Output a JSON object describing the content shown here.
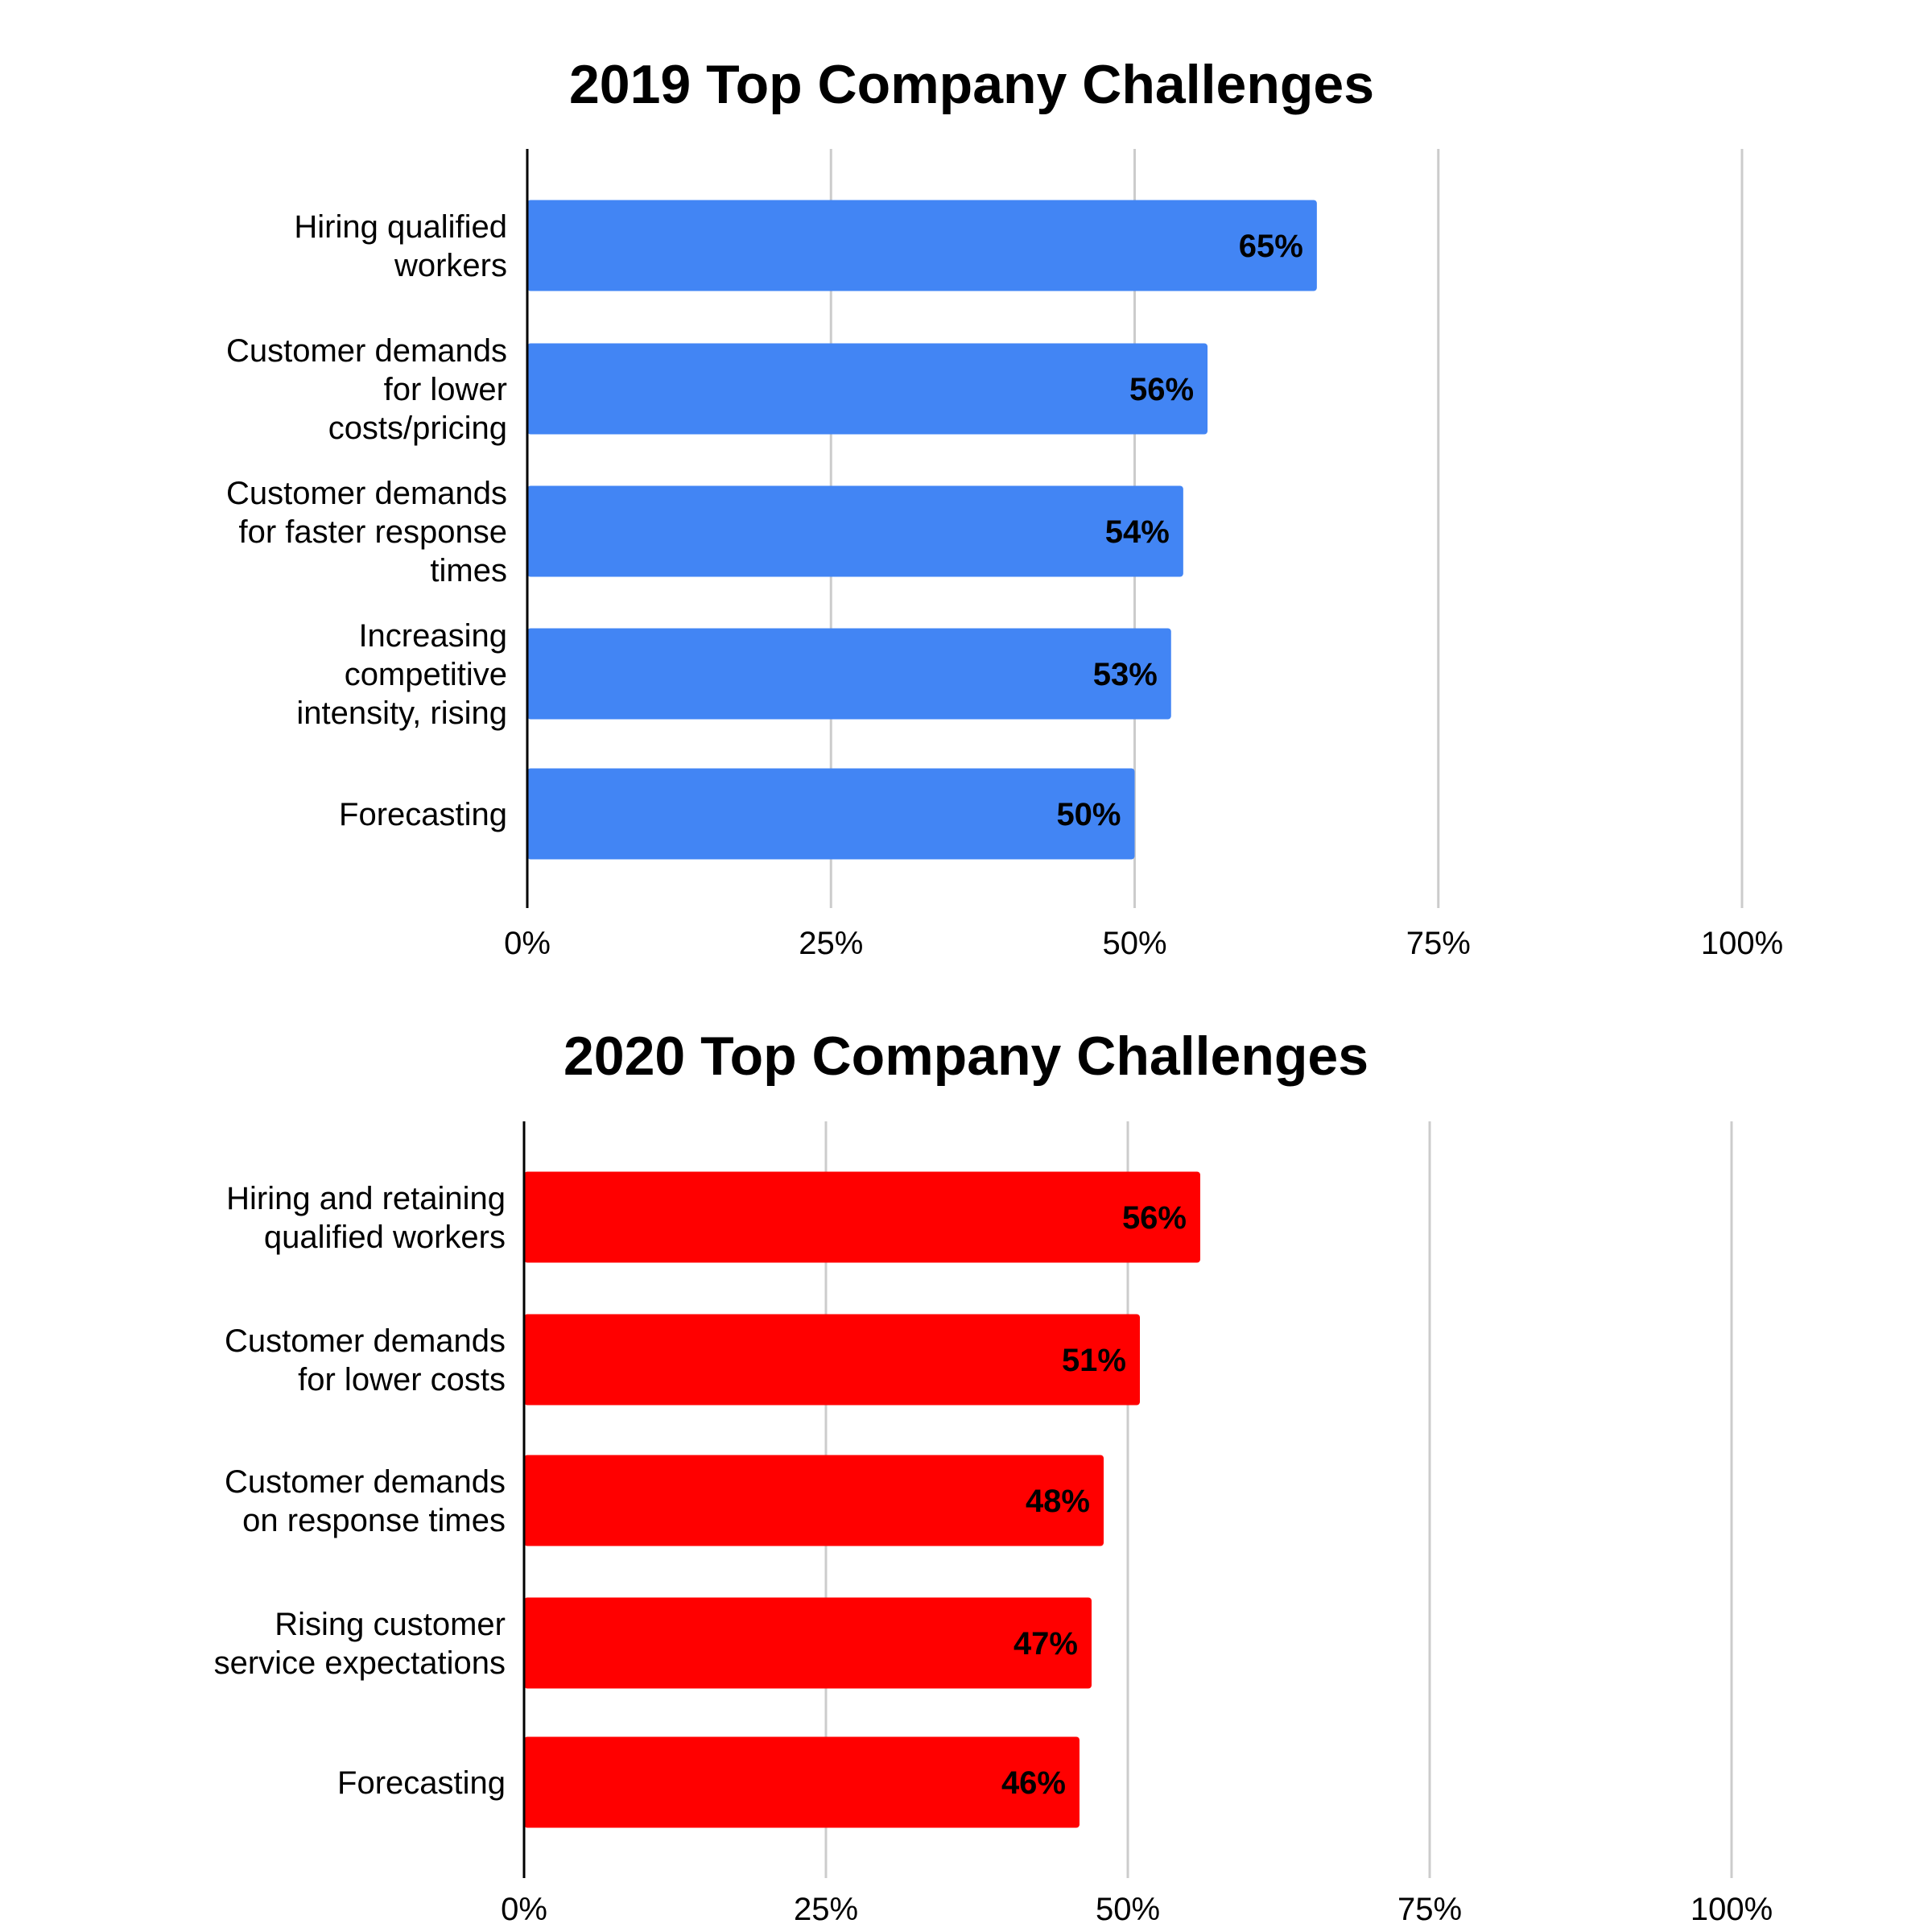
{
  "chart_data": [
    {
      "type": "bar",
      "orientation": "horizontal",
      "title": "2019 Top Company Challenges",
      "categories": [
        [
          "Hiring qualified",
          "workers"
        ],
        [
          "Customer demands",
          "for lower",
          "costs/pricing"
        ],
        [
          "Customer demands",
          "for faster response",
          "times"
        ],
        [
          "Increasing",
          "competitive",
          "intensity, rising"
        ],
        [
          "Forecasting"
        ]
      ],
      "values": [
        65,
        56,
        54,
        53,
        50
      ],
      "data_labels": [
        "65%",
        "56%",
        "54%",
        "53%",
        "50%"
      ],
      "xlim": [
        0,
        100
      ],
      "ticks": [
        0,
        25,
        50,
        75,
        100
      ],
      "tick_labels": [
        "0%",
        "25%",
        "50%",
        "75%",
        "100%"
      ],
      "bar_color": "#4285F4",
      "grid": true,
      "legend": "none"
    },
    {
      "type": "bar",
      "orientation": "horizontal",
      "title": "2020 Top Company Challenges",
      "categories": [
        [
          "Hiring and retaining",
          "qualified workers"
        ],
        [
          "Customer demands",
          "for lower costs"
        ],
        [
          "Customer demands",
          "on response times"
        ],
        [
          "Rising customer",
          "service expectations"
        ],
        [
          "Forecasting"
        ]
      ],
      "values": [
        56,
        51,
        48,
        47,
        46
      ],
      "data_labels": [
        "56%",
        "51%",
        "48%",
        "47%",
        "46%"
      ],
      "xlim": [
        0,
        100
      ],
      "ticks": [
        0,
        25,
        50,
        75,
        100
      ],
      "tick_labels": [
        "0%",
        "25%",
        "50%",
        "75%",
        "100%"
      ],
      "bar_color": "#FF0000",
      "grid": true,
      "legend": "none"
    }
  ]
}
